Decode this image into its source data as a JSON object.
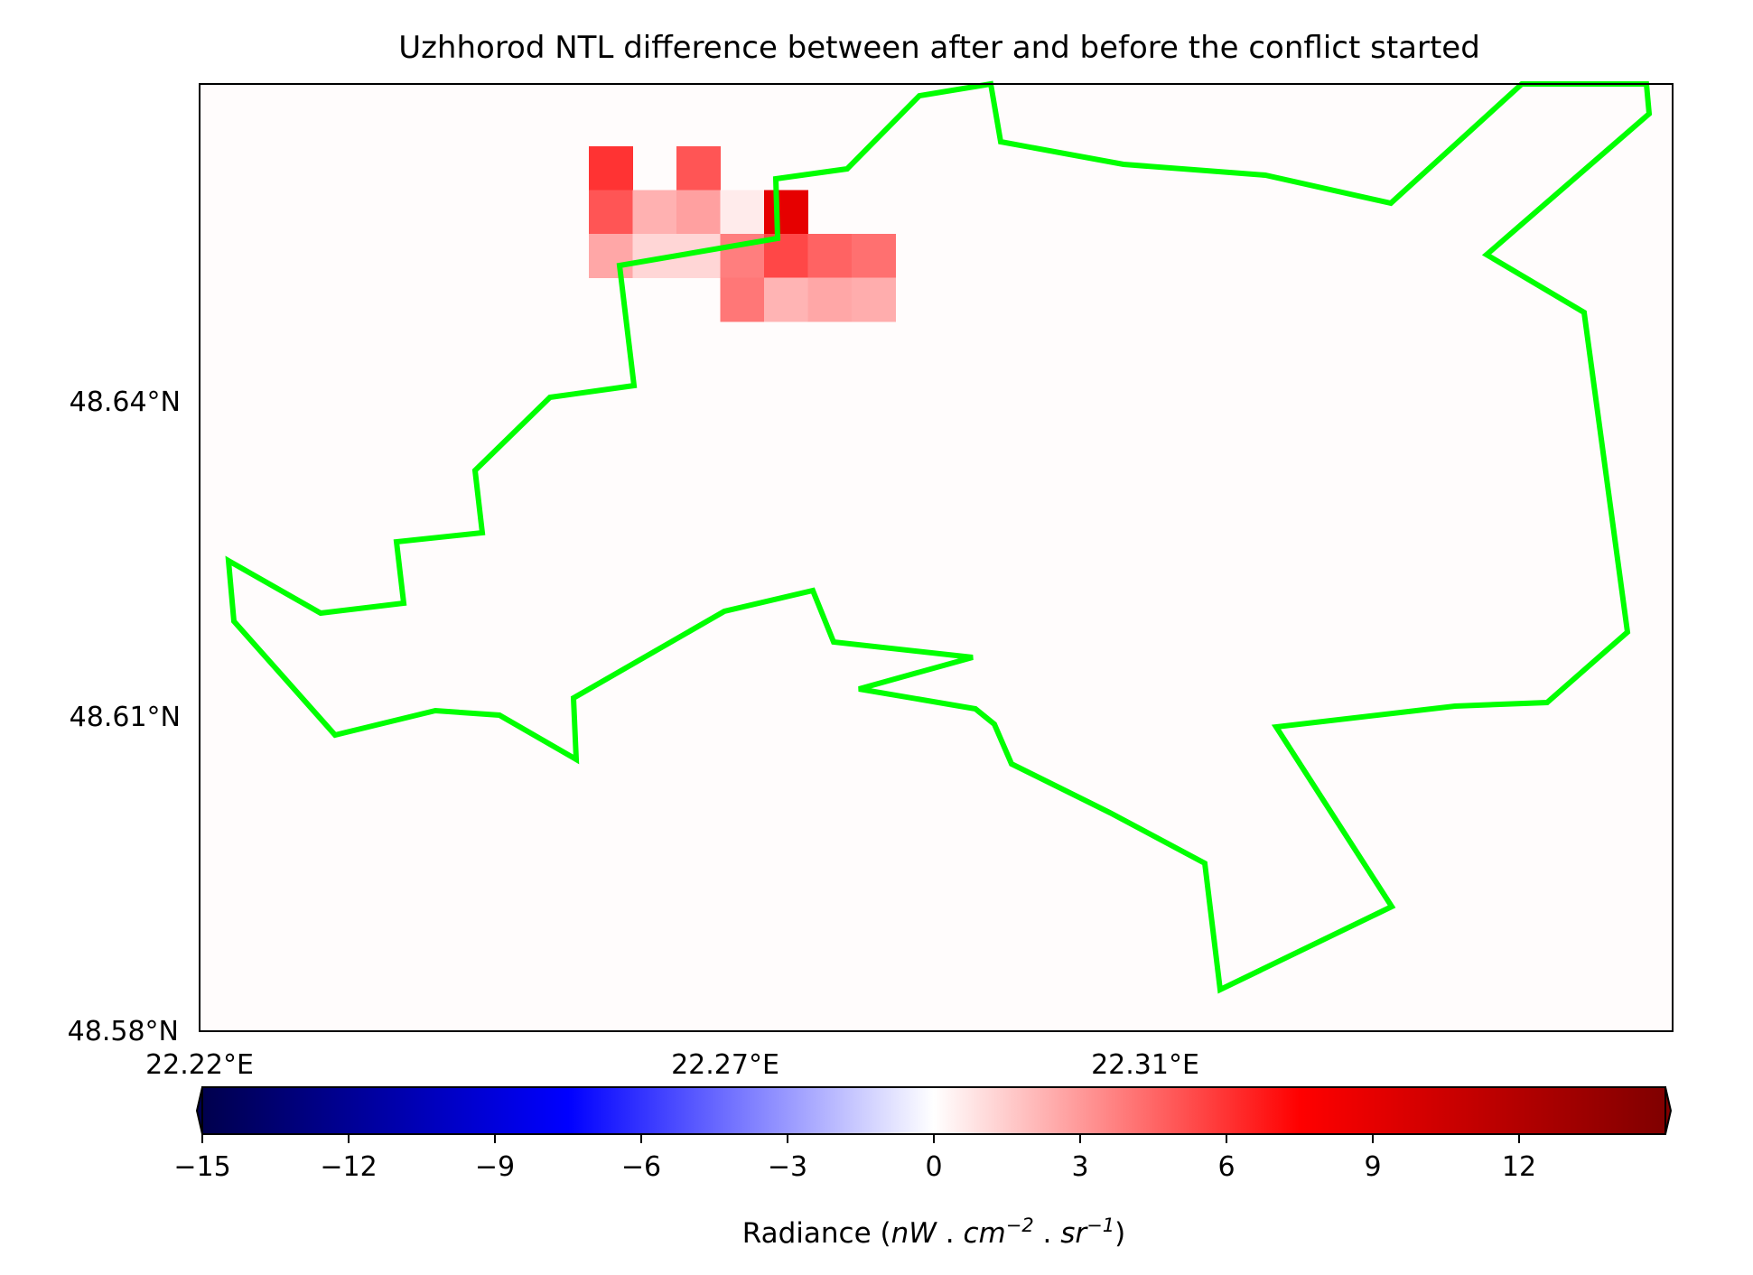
{
  "chart_data": {
    "type": "heatmap",
    "title": "Uzhhorod NTL difference between after and before the conflict started",
    "x_ticks": [
      "22.22°E",
      "22.27°E",
      "22.31°E"
    ],
    "y_ticks": [
      "48.64°N",
      "48.61°N",
      "48.58°N"
    ],
    "colorbar": {
      "label_prefix": "Radiance (",
      "label_unit_base1": "nW",
      "label_sep1": " . ",
      "label_unit_base2": "cm",
      "label_unit_exp2": "−2",
      "label_sep2": " . ",
      "label_unit_base3": "sr",
      "label_unit_exp3": "−1",
      "label_suffix": ")",
      "ticks": [
        "−15",
        "−12",
        "−9",
        "−6",
        "−3",
        "0",
        "3",
        "6",
        "9",
        "12"
      ],
      "vmin": -15,
      "vmax": 15,
      "colormap": "seismic"
    },
    "background_value": 0.1,
    "grid": false,
    "cells": [
      {
        "row": 0,
        "col": 0,
        "value": 6.0
      },
      {
        "row": 0,
        "col": 2,
        "value": 5.0
      },
      {
        "row": 1,
        "col": 0,
        "value": 5.0
      },
      {
        "row": 1,
        "col": 1,
        "value": 2.3
      },
      {
        "row": 1,
        "col": 2,
        "value": 2.8
      },
      {
        "row": 1,
        "col": 3,
        "value": 0.6
      },
      {
        "row": 1,
        "col": 4,
        "value": 9.0
      },
      {
        "row": 2,
        "col": 0,
        "value": 2.6
      },
      {
        "row": 2,
        "col": 1,
        "value": 1.2
      },
      {
        "row": 2,
        "col": 2,
        "value": 1.2
      },
      {
        "row": 2,
        "col": 3,
        "value": 3.8
      },
      {
        "row": 2,
        "col": 4,
        "value": 5.4
      },
      {
        "row": 2,
        "col": 5,
        "value": 4.6
      },
      {
        "row": 2,
        "col": 6,
        "value": 4.2
      },
      {
        "row": 3,
        "col": 3,
        "value": 4.0
      },
      {
        "row": 3,
        "col": 4,
        "value": 2.2
      },
      {
        "row": 3,
        "col": 5,
        "value": 2.6
      },
      {
        "row": 3,
        "col": 6,
        "value": 2.4
      }
    ],
    "boundary_color": "#00ff00"
  }
}
